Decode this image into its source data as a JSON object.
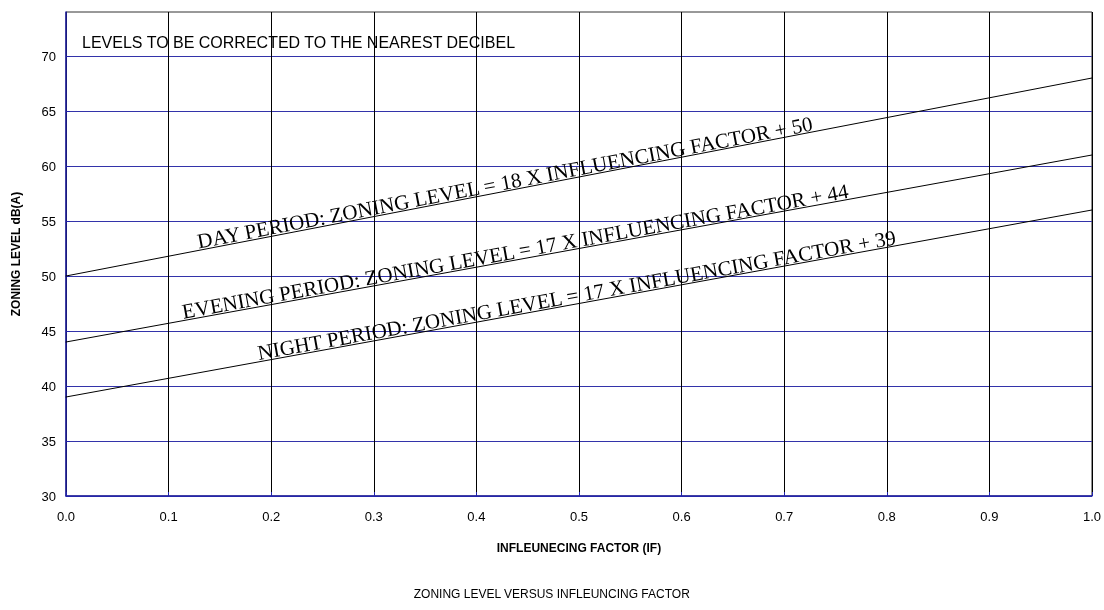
{
  "chart_data": {
    "type": "line",
    "xlabel": "INFLEUNECING FACTOR (IF)",
    "ylabel": "ZONING LEVEL dB(A)",
    "series": [
      {
        "color": "#000000",
        "values": [
          50,
          68
        ]
      },
      {
        "color": "#000000",
        "values": [
          44,
          61
        ]
      },
      {
        "color": "#000000",
        "values": [
          39,
          56
        ]
      }
    ],
    "x": [
      0,
      1
    ],
    "xlim": [
      0,
      1
    ],
    "xticks": [
      {
        "value": 0,
        "label": "0.0"
      },
      {
        "value": 0.1,
        "label": "0.1"
      },
      {
        "value": 0.2,
        "label": "0.2"
      },
      {
        "value": 0.3,
        "label": "0.3"
      },
      {
        "value": 0.4,
        "label": "0.4"
      },
      {
        "value": 0.5,
        "label": "0.5"
      },
      {
        "value": 0.6,
        "label": "0.6"
      },
      {
        "value": 0.7,
        "label": "0.7"
      },
      {
        "value": 0.8,
        "label": "0.8"
      },
      {
        "value": 0.9,
        "label": "0.9"
      },
      {
        "value": 1,
        "label": "1.0"
      }
    ],
    "ylim": [
      30,
      74
    ],
    "yticks": [
      30,
      35,
      40,
      45,
      50,
      55,
      60,
      65,
      70
    ],
    "grid": true,
    "marker": "none",
    "line_style": "solid",
    "annotations": [
      "LEVELS TO BE CORRECTED TO THE NEAREST DECIBEL",
      {
        "text": "DAY PERIOD: ZONING LEVEL = 18 X INFLUENCING FACTOR + 50",
        "x": 0.43,
        "y": 57.74
      },
      {
        "text": "EVENING PERIOD: ZONING LEVEL = 17 X INFLUENCING FACTOR + 44",
        "x": 0.44,
        "y": 51.48
      },
      {
        "text": "NIGHT PERIOD: ZONING LEVEL = 17 X INFLUENCING FACTOR + 39",
        "x": 0.5,
        "y": 47.5
      },
      "ZONING LEVEL VERSUS INFLEUNCING FACTOR"
    ]
  }
}
